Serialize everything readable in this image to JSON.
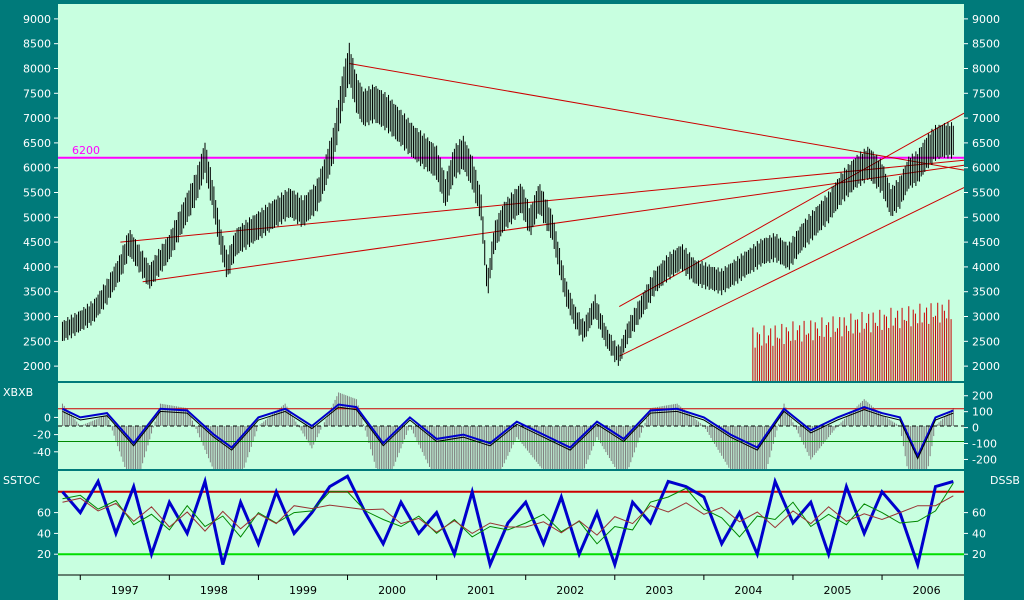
{
  "chart_data": [
    {
      "type": "line",
      "panel": "price",
      "title": "",
      "y_ticks_left": [
        2000,
        2500,
        3000,
        3500,
        4000,
        4500,
        5000,
        5500,
        6000,
        6500,
        7000,
        7500,
        8000,
        8500,
        9000
      ],
      "y_ticks_right": [
        2000,
        2500,
        3000,
        3500,
        4000,
        4500,
        5000,
        5500,
        6000,
        6500,
        7000,
        7500,
        8000,
        8500,
        9000
      ],
      "ylim": [
        1700,
        9300
      ],
      "xlim": [
        1996.75,
        2006.92
      ],
      "series": [
        {
          "x": [
            1996.8,
            1996.95,
            1997.15,
            1997.3,
            1997.45,
            1997.55,
            1997.65,
            1997.78,
            1997.85,
            1998.0,
            1998.15,
            1998.3,
            1998.4,
            1998.48,
            1998.58,
            1998.65,
            1998.75,
            1998.9,
            1999.05,
            1999.2,
            1999.35,
            1999.5,
            1999.65,
            1999.75,
            1999.85,
            1999.95,
            2000.02,
            2000.1,
            2000.18,
            2000.3,
            2000.45,
            2000.6,
            2000.75,
            2000.88,
            2001.0,
            2001.1,
            2001.2,
            2001.3,
            2001.4,
            2001.5,
            2001.57,
            2001.65,
            2001.75,
            2001.85,
            2001.95,
            2002.05,
            2002.15,
            2002.3,
            2002.45,
            2002.55,
            2002.65,
            2002.78,
            2002.9,
            2003.0,
            2003.05,
            2003.15,
            2003.3,
            2003.45,
            2003.6,
            2003.75,
            2003.9,
            2004.05,
            2004.2,
            2004.35,
            2004.5,
            2004.65,
            2004.8,
            2004.95,
            2005.1,
            2005.25,
            2005.4,
            2005.55,
            2005.7,
            2005.85,
            2006.0,
            2006.1,
            2006.2,
            2006.3,
            2006.4,
            2006.5,
            2006.6,
            2006.7,
            2006.8
          ],
          "values": [
            2700,
            2850,
            3100,
            3500,
            4000,
            4500,
            4200,
            3800,
            4000,
            4400,
            5000,
            5600,
            6200,
            5500,
            4500,
            4000,
            4500,
            4700,
            4900,
            5100,
            5300,
            5100,
            5400,
            5900,
            6500,
            7600,
            8100,
            7500,
            7200,
            7300,
            7100,
            6800,
            6500,
            6300,
            6100,
            5500,
            6100,
            6300,
            5900,
            5200,
            3600,
            4600,
            5000,
            5200,
            5400,
            4900,
            5400,
            4800,
            3500,
            3000,
            2700,
            3200,
            2600,
            2300,
            2200,
            2700,
            3200,
            3700,
            4000,
            4200,
            3900,
            3800,
            3700,
            3900,
            4100,
            4300,
            4400,
            4200,
            4600,
            4900,
            5200,
            5600,
            5900,
            6100,
            5800,
            5300,
            5500,
            5900,
            6000,
            6300,
            6500,
            6550,
            6550
          ]
        }
      ],
      "annotations": [
        {
          "text": "6200",
          "y": 6200,
          "color": "#ff00ff"
        }
      ]
    },
    {
      "type": "line",
      "panel": "indicator",
      "name": "XBXB",
      "y_ticks_left": [
        0,
        -20,
        -40
      ],
      "y_ticks_right": [
        200,
        100,
        0,
        -100,
        -200
      ],
      "ylim": [
        -60,
        40
      ],
      "series": [
        {
          "name": "XBXB",
          "x": [
            1996.8,
            1997.0,
            1997.3,
            1997.6,
            1997.9,
            1998.2,
            1998.5,
            1998.7,
            1999.0,
            1999.3,
            1999.6,
            1999.9,
            2000.1,
            2000.4,
            2000.7,
            2001.0,
            2001.3,
            2001.6,
            2001.9,
            2002.2,
            2002.5,
            2002.8,
            2003.1,
            2003.4,
            2003.7,
            2004.0,
            2004.3,
            2004.6,
            2004.9,
            2005.2,
            2005.5,
            2005.8,
            2006.0,
            2006.2,
            2006.4,
            2006.6,
            2006.8
          ],
          "values": [
            10,
            0,
            5,
            -30,
            10,
            8,
            -20,
            -35,
            0,
            10,
            -10,
            15,
            12,
            -30,
            0,
            -25,
            -20,
            -30,
            -5,
            -20,
            -35,
            -5,
            -25,
            8,
            10,
            0,
            -20,
            -35,
            10,
            -15,
            0,
            12,
            5,
            0,
            -45,
            0,
            8
          ]
        }
      ]
    },
    {
      "type": "line",
      "panel": "oscillator",
      "name": "SSTOC",
      "right_label": "DSSB",
      "y_ticks_left": [
        60,
        40,
        20
      ],
      "y_ticks_right": [
        60,
        40,
        20
      ],
      "ylim": [
        0,
        100
      ],
      "reference_lines": [
        80,
        20
      ],
      "series": [
        {
          "name": "SSTOC",
          "x": [
            1996.8,
            1997.0,
            1997.2,
            1997.4,
            1997.6,
            1997.8,
            1998.0,
            1998.2,
            1998.4,
            1998.6,
            1998.8,
            1999.0,
            1999.2,
            1999.4,
            1999.6,
            1999.8,
            2000.0,
            2000.2,
            2000.4,
            2000.6,
            2000.8,
            2001.0,
            2001.2,
            2001.4,
            2001.6,
            2001.8,
            2002.0,
            2002.2,
            2002.4,
            2002.6,
            2002.8,
            2003.0,
            2003.2,
            2003.4,
            2003.6,
            2003.8,
            2004.0,
            2004.2,
            2004.4,
            2004.6,
            2004.8,
            2005.0,
            2005.2,
            2005.4,
            2005.6,
            2005.8,
            2006.0,
            2006.2,
            2006.4,
            2006.6,
            2006.8
          ],
          "values": [
            80,
            60,
            90,
            40,
            85,
            20,
            70,
            40,
            90,
            10,
            70,
            30,
            80,
            40,
            60,
            85,
            95,
            60,
            30,
            70,
            40,
            60,
            20,
            80,
            10,
            50,
            70,
            30,
            75,
            20,
            60,
            10,
            70,
            50,
            90,
            85,
            75,
            30,
            60,
            20,
            90,
            50,
            70,
            20,
            85,
            40,
            80,
            60,
            10,
            85,
            90
          ]
        }
      ]
    }
  ],
  "x_axis": {
    "tick_labels": [
      "1997",
      "1998",
      "1999",
      "2000",
      "2001",
      "2002",
      "2003",
      "2004",
      "2005",
      "2006"
    ]
  },
  "labels": {
    "xbxb": "XBXB",
    "sstoc": "SSTOC",
    "dssb": "DSSB",
    "level_6200": "6200"
  },
  "colors": {
    "background": "#007a7a",
    "plot": "#c8ffe0",
    "price": "#000000",
    "trendline": "#cc0000",
    "level": "#ff00ff",
    "volume": "#cc0000",
    "osc_main": "#0000cc",
    "osc_upper": "#cc0000",
    "osc_lower": "#00dd00"
  }
}
